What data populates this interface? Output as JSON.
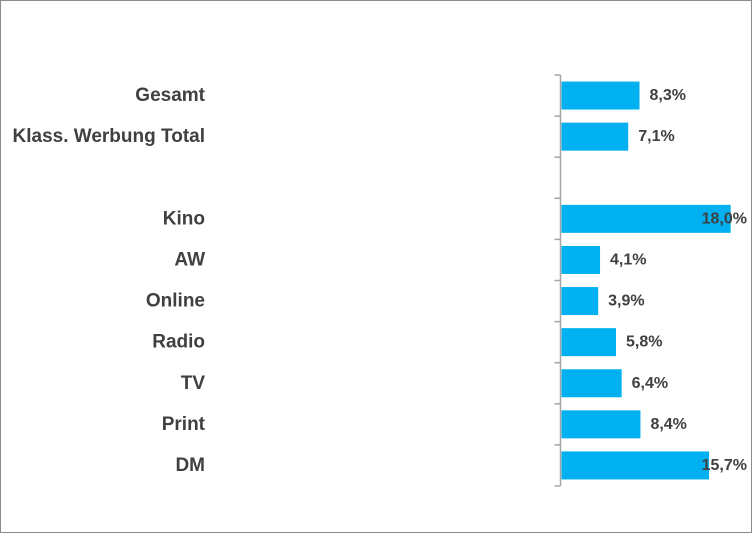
{
  "chart_data": {
    "type": "bar",
    "orientation": "horizontal",
    "categories": [
      "Gesamt",
      "Klass. Werbung Total",
      "",
      "Kino",
      "AW",
      "Online",
      "Radio",
      "TV",
      "Print",
      "DM"
    ],
    "values": [
      8.3,
      7.1,
      null,
      18.0,
      4.1,
      3.9,
      5.8,
      6.4,
      8.4,
      15.7
    ],
    "value_labels": [
      "8,3%",
      "7,1%",
      "",
      "18,0%",
      "4,1%",
      "3,9%",
      "5,8%",
      "6,4%",
      "8,4%",
      "15,7%"
    ],
    "title": "",
    "xlabel": "",
    "ylabel": "",
    "xlim": [
      0,
      18.3
    ],
    "grid": false,
    "legend": "none",
    "bar_color": "#00b0f0",
    "label_color": "#404040",
    "axis_color": "#a6a6a6"
  }
}
